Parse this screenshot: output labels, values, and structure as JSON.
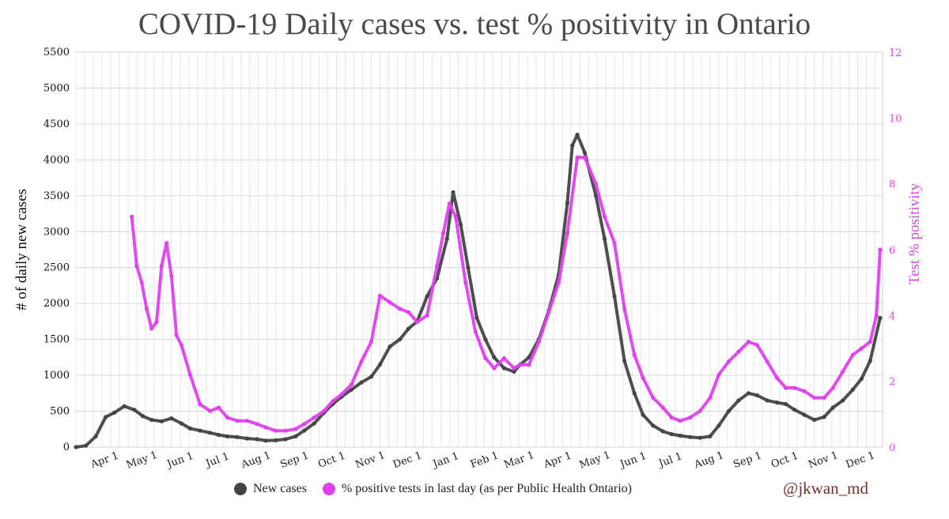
{
  "chart_data": {
    "type": "line",
    "title": "COVID-19 Daily cases vs. test % positivity in Ontario",
    "ylabel": "# of daily new cases",
    "y2label": "Test % positivity",
    "ylim": [
      0,
      5500
    ],
    "y2lim": [
      0,
      12
    ],
    "y_ticks": [
      "0",
      "500",
      "1000",
      "1500",
      "2000",
      "2500",
      "3000",
      "3500",
      "4000",
      "4500",
      "5000",
      "5500"
    ],
    "y2_ticks": [
      "0",
      "2",
      "4",
      "6",
      "8",
      "10",
      "12"
    ],
    "x_ticks": [
      "Apr 1",
      "May 1",
      "Jun 1",
      "Jul 1",
      "Aug 1",
      "Sep 1",
      "Oct 1",
      "Nov 1",
      "Dec 1",
      "Jan 1",
      "Feb 1",
      "Mar 1",
      "Apr 1",
      "May 1",
      "Jun 1",
      "Jul 1",
      "Aug 1",
      "Sep 1",
      "Oct 1",
      "Nov 1",
      "Dec 1"
    ],
    "grid": true,
    "colors": {
      "cases": "#444444",
      "positivity": "#e040f0",
      "credit": "#7a2d24"
    },
    "series": [
      {
        "name": "New cases",
        "axis": "left",
        "x": [
          "2020-03-08",
          "2020-03-16",
          "2020-03-24",
          "2020-04-01",
          "2020-04-08",
          "2020-04-16",
          "2020-04-24",
          "2020-05-01",
          "2020-05-08",
          "2020-05-16",
          "2020-05-24",
          "2020-06-01",
          "2020-06-08",
          "2020-06-16",
          "2020-06-24",
          "2020-07-01",
          "2020-07-08",
          "2020-07-16",
          "2020-07-24",
          "2020-08-01",
          "2020-08-08",
          "2020-08-16",
          "2020-08-24",
          "2020-09-01",
          "2020-09-08",
          "2020-09-16",
          "2020-09-24",
          "2020-10-01",
          "2020-10-08",
          "2020-10-16",
          "2020-10-24",
          "2020-11-01",
          "2020-11-08",
          "2020-11-16",
          "2020-11-24",
          "2020-12-01",
          "2020-12-08",
          "2020-12-16",
          "2020-12-24",
          "2021-01-01",
          "2021-01-06",
          "2021-01-12",
          "2021-01-18",
          "2021-01-25",
          "2021-02-01",
          "2021-02-08",
          "2021-02-16",
          "2021-02-24",
          "2021-03-01",
          "2021-03-08",
          "2021-03-16",
          "2021-03-24",
          "2021-04-01",
          "2021-04-08",
          "2021-04-12",
          "2021-04-16",
          "2021-04-22",
          "2021-05-01",
          "2021-05-08",
          "2021-05-16",
          "2021-05-24",
          "2021-06-01",
          "2021-06-08",
          "2021-06-16",
          "2021-06-24",
          "2021-07-01",
          "2021-07-08",
          "2021-07-16",
          "2021-07-24",
          "2021-08-01",
          "2021-08-08",
          "2021-08-16",
          "2021-08-24",
          "2021-09-01",
          "2021-09-08",
          "2021-09-16",
          "2021-09-24",
          "2021-10-01",
          "2021-10-08",
          "2021-10-16",
          "2021-10-24",
          "2021-11-01",
          "2021-11-08",
          "2021-11-16",
          "2021-11-24",
          "2021-12-01",
          "2021-12-08",
          "2021-12-16"
        ],
        "values": [
          0,
          20,
          150,
          420,
          480,
          570,
          520,
          430,
          380,
          360,
          400,
          330,
          260,
          230,
          200,
          170,
          150,
          140,
          120,
          110,
          90,
          95,
          110,
          150,
          230,
          330,
          480,
          600,
          700,
          800,
          900,
          980,
          1150,
          1400,
          1500,
          1650,
          1750,
          2100,
          2350,
          2900,
          3550,
          3100,
          2500,
          1800,
          1500,
          1250,
          1100,
          1050,
          1150,
          1250,
          1500,
          1900,
          2400,
          3400,
          4200,
          4350,
          4100,
          3500,
          2900,
          2100,
          1200,
          750,
          450,
          300,
          220,
          180,
          160,
          140,
          130,
          150,
          300,
          500,
          650,
          750,
          720,
          650,
          620,
          600,
          520,
          450,
          380,
          420,
          550,
          650,
          800,
          950,
          1200,
          1800
        ]
      },
      {
        "name": "% positive tests in last day (as per Public Health Ontario)",
        "axis": "right",
        "x": [
          "2020-04-22",
          "2020-04-26",
          "2020-04-30",
          "2020-05-04",
          "2020-05-08",
          "2020-05-12",
          "2020-05-16",
          "2020-05-20",
          "2020-05-24",
          "2020-05-28",
          "2020-06-01",
          "2020-06-08",
          "2020-06-16",
          "2020-06-24",
          "2020-07-01",
          "2020-07-08",
          "2020-07-16",
          "2020-07-24",
          "2020-08-01",
          "2020-08-08",
          "2020-08-16",
          "2020-08-24",
          "2020-09-01",
          "2020-09-08",
          "2020-09-16",
          "2020-09-24",
          "2020-10-01",
          "2020-10-08",
          "2020-10-16",
          "2020-10-24",
          "2020-11-01",
          "2020-11-08",
          "2020-11-16",
          "2020-11-24",
          "2020-12-01",
          "2020-12-08",
          "2020-12-16",
          "2020-12-24",
          "2020-12-29",
          "2021-01-03",
          "2021-01-08",
          "2021-01-16",
          "2021-01-24",
          "2021-02-01",
          "2021-02-08",
          "2021-02-16",
          "2021-02-24",
          "2021-03-01",
          "2021-03-08",
          "2021-03-16",
          "2021-03-24",
          "2021-04-01",
          "2021-04-08",
          "2021-04-16",
          "2021-04-22",
          "2021-05-01",
          "2021-05-08",
          "2021-05-16",
          "2021-05-24",
          "2021-06-01",
          "2021-06-08",
          "2021-06-16",
          "2021-06-24",
          "2021-07-01",
          "2021-07-08",
          "2021-07-16",
          "2021-07-24",
          "2021-08-01",
          "2021-08-08",
          "2021-08-16",
          "2021-08-24",
          "2021-09-01",
          "2021-09-08",
          "2021-09-16",
          "2021-09-24",
          "2021-10-01",
          "2021-10-08",
          "2021-10-16",
          "2021-10-24",
          "2021-11-01",
          "2021-11-08",
          "2021-11-16",
          "2021-11-24",
          "2021-12-01",
          "2021-12-08",
          "2021-12-13",
          "2021-12-16"
        ],
        "values": [
          7,
          5.5,
          5,
          4.2,
          3.6,
          3.8,
          5.5,
          6.2,
          5.2,
          3.4,
          3.1,
          2.2,
          1.3,
          1.1,
          1.2,
          0.9,
          0.8,
          0.8,
          0.7,
          0.6,
          0.5,
          0.5,
          0.55,
          0.7,
          0.9,
          1.1,
          1.4,
          1.6,
          1.9,
          2.6,
          3.2,
          4.6,
          4.4,
          4.2,
          4.1,
          3.8,
          4.0,
          5.5,
          6.5,
          7.4,
          7.0,
          5.0,
          3.5,
          2.7,
          2.4,
          2.7,
          2.4,
          2.5,
          2.5,
          3.2,
          4.1,
          5.0,
          6.5,
          8.8,
          8.8,
          8.0,
          7.0,
          6.2,
          4.2,
          2.8,
          2.1,
          1.5,
          1.2,
          0.9,
          0.8,
          0.9,
          1.1,
          1.5,
          2.2,
          2.6,
          2.9,
          3.2,
          3.1,
          2.6,
          2.1,
          1.8,
          1.8,
          1.7,
          1.5,
          1.5,
          1.8,
          2.3,
          2.8,
          3.0,
          3.2,
          4.0,
          6.0
        ]
      }
    ]
  },
  "legend": {
    "cases_label": "New cases",
    "positivity_label": "% positive tests in last day (as per Public Health Ontario)"
  },
  "credit": "@jkwan_md"
}
